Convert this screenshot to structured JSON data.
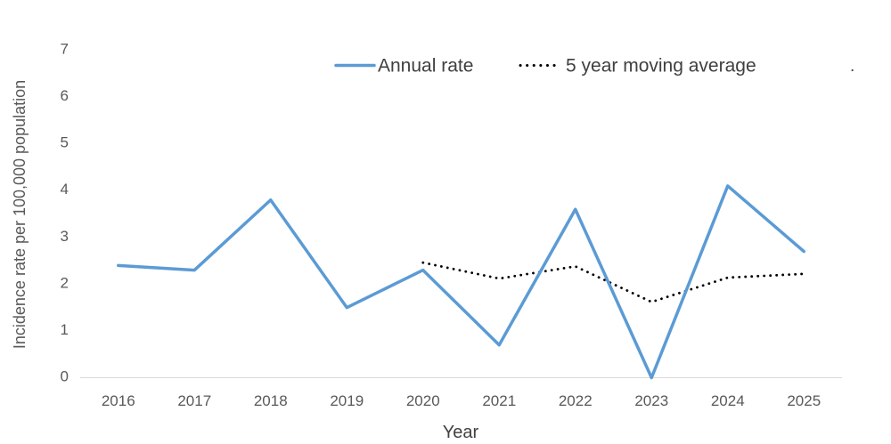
{
  "colors": {
    "annual_line": "#5B9BD5",
    "moving_average_line": "#000000",
    "axis_line": "#D9D9D9",
    "tick_text": "#595959",
    "title_text": "#404040"
  },
  "stray_mark": ".",
  "chart_data": {
    "type": "line",
    "categories": [
      "2016",
      "2017",
      "2018",
      "2019",
      "2020",
      "2021",
      "2022",
      "2023",
      "2024",
      "2025"
    ],
    "series": [
      {
        "name": "Annual rate",
        "values": [
          2.4,
          2.3,
          3.8,
          1.5,
          2.3,
          0.7,
          3.6,
          0,
          4.1,
          2.7
        ],
        "line_style": "solid",
        "color": "#5B9BD5"
      },
      {
        "name": "5 year moving average",
        "values": [
          null,
          null,
          null,
          null,
          2.46,
          2.12,
          2.38,
          1.62,
          2.14,
          2.22
        ],
        "line_style": "dotted",
        "color": "#000000"
      }
    ],
    "title": "",
    "xlabel": "Year",
    "ylabel": "Incidence rate per 100,000 population",
    "ylim": [
      0,
      7
    ],
    "y_ticks": [
      0,
      1,
      2,
      3,
      4,
      5,
      6,
      7
    ],
    "grid": false,
    "legend_position": "top-center"
  }
}
